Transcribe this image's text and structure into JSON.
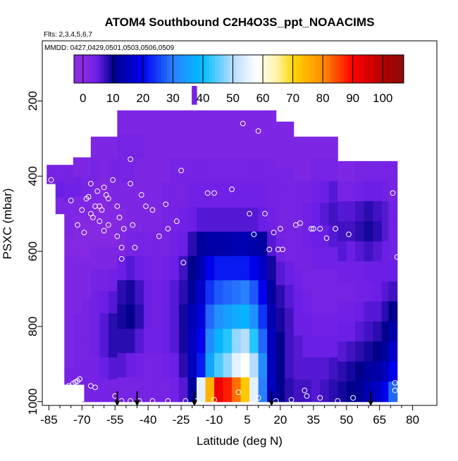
{
  "chart_data": {
    "type": "heatmap",
    "title": "ATOM4 Southbound C2H4O3S_ppt_NOAACIMS",
    "flights_label": "Flts: 2,3,4,5,6,7",
    "dates_label": "MMDD: 0427,0429,0501,0503,0506,0509",
    "xlabel": "Latitude (deg N)",
    "ylabel": "PSXC (mbar)",
    "x_ticks": [
      -85,
      -70,
      -55,
      -40,
      -25,
      -10,
      5,
      20,
      35,
      50,
      65,
      80
    ],
    "x_tick_labels": [
      "-85",
      "-70",
      "-55",
      "-40",
      "-25",
      "-10",
      "5",
      "20",
      "35",
      "50",
      "65",
      "80"
    ],
    "x_range": [
      -88,
      91
    ],
    "y_ticks": [
      200,
      400,
      600,
      800,
      1000
    ],
    "y_tick_labels": [
      "200",
      "400",
      "600",
      "800",
      "1000"
    ],
    "y_range": [
      1010,
      40
    ],
    "colorbar": {
      "ticks": [
        0,
        10,
        20,
        30,
        40,
        50,
        60,
        70,
        80,
        90,
        100
      ],
      "tick_labels": [
        "0",
        "10",
        "20",
        "30",
        "40",
        "50",
        "60",
        "70",
        "80",
        "90",
        "100"
      ],
      "range": [
        -3,
        107
      ]
    },
    "columns": [
      {
        "lat": -84,
        "top": 370,
        "bottom": 420,
        "values": [
          3
        ]
      },
      {
        "lat": -80,
        "top": 370,
        "bottom": 500,
        "values": [
          3,
          5,
          2
        ]
      },
      {
        "lat": -76,
        "top": 370,
        "bottom": 960,
        "values": [
          3,
          4,
          2,
          2,
          1,
          2,
          2,
          2,
          2,
          2,
          2,
          3
        ]
      },
      {
        "lat": -72,
        "top": 350,
        "bottom": 975,
        "values": [
          2,
          4,
          2,
          1,
          1,
          2,
          2,
          2,
          3,
          3,
          3,
          3
        ]
      },
      {
        "lat": -68,
        "top": 350,
        "bottom": 1000,
        "values": [
          2,
          3,
          2,
          1,
          1,
          2,
          2,
          3,
          3,
          3,
          3,
          3
        ]
      },
      {
        "lat": -64,
        "top": 295,
        "bottom": 1000,
        "values": [
          2,
          3,
          2,
          1,
          1,
          2,
          3,
          4,
          4,
          4,
          3,
          3
        ]
      },
      {
        "lat": -60,
        "top": 295,
        "bottom": 1000,
        "values": [
          2,
          2,
          1,
          1,
          1,
          2,
          3,
          5,
          6,
          6,
          5,
          3
        ]
      },
      {
        "lat": -56,
        "top": 295,
        "bottom": 1000,
        "values": [
          2,
          3,
          2,
          1,
          1,
          2,
          4,
          6,
          8,
          8,
          6,
          3
        ]
      },
      {
        "lat": -52,
        "top": 225,
        "bottom": 1000,
        "values": [
          2,
          3,
          3,
          2,
          1,
          2,
          5,
          8,
          9,
          8,
          6,
          3
        ]
      },
      {
        "lat": -48,
        "top": 225,
        "bottom": 1000,
        "values": [
          2,
          3,
          3,
          2,
          2,
          3,
          6,
          9,
          10,
          8,
          5,
          3
        ]
      },
      {
        "lat": -44,
        "top": 225,
        "bottom": 1000,
        "values": [
          2,
          3,
          2,
          2,
          2,
          3,
          5,
          7,
          8,
          6,
          4,
          3
        ]
      },
      {
        "lat": -40,
        "top": 225,
        "bottom": 1000,
        "values": [
          2,
          2,
          2,
          2,
          2,
          3,
          4,
          5,
          5,
          4,
          3,
          3
        ]
      },
      {
        "lat": -36,
        "top": 225,
        "bottom": 1000,
        "values": [
          2,
          2,
          2,
          2,
          2,
          3,
          3,
          4,
          4,
          4,
          3,
          3
        ]
      },
      {
        "lat": -32,
        "top": 225,
        "bottom": 1000,
        "values": [
          2,
          2,
          2,
          3,
          3,
          3,
          4,
          5,
          5,
          5,
          4,
          3
        ]
      },
      {
        "lat": -28,
        "top": 225,
        "bottom": 1000,
        "values": [
          2,
          2,
          3,
          3,
          3,
          4,
          5,
          6,
          6,
          6,
          5,
          4
        ]
      },
      {
        "lat": -24,
        "top": 225,
        "bottom": 1000,
        "values": [
          2,
          2,
          3,
          3,
          4,
          5,
          7,
          8,
          9,
          9,
          8,
          6
        ]
      },
      {
        "lat": -20,
        "top": 225,
        "bottom": 1000,
        "values": [
          2,
          2,
          3,
          4,
          5,
          8,
          10,
          12,
          14,
          15,
          15,
          12
        ]
      },
      {
        "lat": -16,
        "top": 225,
        "bottom": 1000,
        "values": [
          2,
          2,
          3,
          4,
          6,
          12,
          14,
          16,
          18,
          20,
          22,
          55
        ]
      },
      {
        "lat": -12,
        "top": 225,
        "bottom": 1000,
        "values": [
          2,
          2,
          3,
          4,
          6,
          13,
          20,
          24,
          28,
          32,
          36,
          75
        ]
      },
      {
        "lat": -8,
        "top": 225,
        "bottom": 1000,
        "values": [
          2,
          2,
          3,
          4,
          6,
          13,
          22,
          27,
          33,
          38,
          44,
          92
        ]
      },
      {
        "lat": -4,
        "top": 225,
        "bottom": 1000,
        "values": [
          2,
          2,
          3,
          4,
          6,
          13,
          22,
          28,
          35,
          42,
          48,
          88
        ]
      },
      {
        "lat": 0,
        "top": 225,
        "bottom": 1000,
        "values": [
          2,
          2,
          3,
          4,
          6,
          14,
          22,
          29,
          37,
          48,
          55,
          82
        ]
      },
      {
        "lat": 4,
        "top": 225,
        "bottom": 1000,
        "values": [
          2,
          2,
          3,
          4,
          6,
          14,
          22,
          30,
          38,
          50,
          58,
          72
        ]
      },
      {
        "lat": 8,
        "top": 225,
        "bottom": 1000,
        "values": [
          2,
          2,
          3,
          4,
          6,
          13,
          20,
          27,
          33,
          42,
          50,
          55
        ]
      },
      {
        "lat": 12,
        "top": 225,
        "bottom": 1000,
        "values": [
          2,
          2,
          3,
          4,
          5,
          12,
          16,
          20,
          24,
          28,
          32,
          30
        ]
      },
      {
        "lat": 16,
        "top": 225,
        "bottom": 1000,
        "values": [
          2,
          2,
          3,
          3,
          4,
          6,
          9,
          12,
          14,
          15,
          15,
          15
        ]
      },
      {
        "lat": 20,
        "top": 255,
        "bottom": 1000,
        "values": [
          2,
          2,
          3,
          3,
          3,
          4,
          6,
          8,
          9,
          10,
          10,
          10
        ]
      },
      {
        "lat": 24,
        "top": 255,
        "bottom": 1000,
        "values": [
          2,
          2,
          3,
          3,
          3,
          3,
          5,
          6,
          7,
          7,
          7,
          8
        ]
      },
      {
        "lat": 28,
        "top": 295,
        "bottom": 1000,
        "values": [
          2,
          2,
          3,
          3,
          3,
          3,
          4,
          5,
          5,
          6,
          6,
          7
        ]
      },
      {
        "lat": 32,
        "top": 295,
        "bottom": 1000,
        "values": [
          2,
          2,
          3,
          4,
          4,
          3,
          3,
          4,
          5,
          5,
          6,
          7
        ]
      },
      {
        "lat": 36,
        "top": 295,
        "bottom": 1000,
        "values": [
          2,
          3,
          4,
          5,
          5,
          4,
          3,
          3,
          4,
          5,
          6,
          6
        ]
      },
      {
        "lat": 40,
        "top": 295,
        "bottom": 1000,
        "values": [
          2,
          3,
          5,
          6,
          5,
          4,
          3,
          3,
          4,
          5,
          6,
          7
        ]
      },
      {
        "lat": 44,
        "top": 295,
        "bottom": 1000,
        "values": [
          2,
          3,
          6,
          7,
          6,
          4,
          3,
          3,
          4,
          5,
          7,
          8
        ]
      },
      {
        "lat": 48,
        "top": 360,
        "bottom": 1000,
        "values": [
          2,
          3,
          6,
          7,
          6,
          4,
          3,
          4,
          5,
          6,
          8,
          9
        ]
      },
      {
        "lat": 52,
        "top": 360,
        "bottom": 1000,
        "values": [
          2,
          3,
          6,
          7,
          5,
          4,
          3,
          4,
          5,
          7,
          9,
          10
        ]
      },
      {
        "lat": 56,
        "top": 360,
        "bottom": 1000,
        "values": [
          3,
          4,
          7,
          8,
          6,
          4,
          4,
          5,
          6,
          8,
          10,
          11
        ]
      },
      {
        "lat": 60,
        "top": 360,
        "bottom": 1000,
        "values": [
          3,
          5,
          8,
          9,
          7,
          5,
          4,
          6,
          7,
          9,
          12,
          14
        ]
      },
      {
        "lat": 64,
        "top": 360,
        "bottom": 1000,
        "values": [
          3,
          5,
          7,
          8,
          6,
          5,
          5,
          6,
          8,
          10,
          13,
          16
        ]
      },
      {
        "lat": 68,
        "top": 360,
        "bottom": 1000,
        "values": [
          3,
          4,
          6,
          6,
          5,
          5,
          6,
          8,
          10,
          12,
          15,
          20
        ]
      },
      {
        "lat": 71,
        "top": 360,
        "bottom": 1000,
        "values": [
          3,
          3,
          4,
          4,
          4,
          5,
          7,
          10,
          13,
          16,
          20,
          28
        ]
      }
    ],
    "spike": {
      "lat": -19,
      "top": 160,
      "bottom": 210,
      "value": 3
    },
    "white_patch": {
      "lat_range": [
        -80,
        -69
      ],
      "top": 955,
      "bottom": 1000
    },
    "arrows_lat": [
      -54,
      -45,
      -19,
      16,
      61
    ],
    "sample_points": [
      [
        -84,
        410
      ],
      [
        -75,
        465
      ],
      [
        -72,
        530
      ],
      [
        -70,
        490
      ],
      [
        -69,
        550
      ],
      [
        -68,
        460
      ],
      [
        -67,
        455
      ],
      [
        -66,
        420
      ],
      [
        -66,
        500
      ],
      [
        -65,
        510
      ],
      [
        -64,
        480
      ],
      [
        -63,
        440
      ],
      [
        -62,
        520
      ],
      [
        -62,
        480
      ],
      [
        -61,
        490
      ],
      [
        -60,
        430
      ],
      [
        -60,
        545
      ],
      [
        -59,
        450
      ],
      [
        -58,
        460
      ],
      [
        -58,
        530
      ],
      [
        -56,
        410
      ],
      [
        -54,
        480
      ],
      [
        -54,
        560
      ],
      [
        -53,
        510
      ],
      [
        -52,
        620
      ],
      [
        -52,
        590
      ],
      [
        -51,
        540
      ],
      [
        -48,
        420
      ],
      [
        -48,
        355
      ],
      [
        -47,
        530
      ],
      [
        -46,
        590
      ],
      [
        -43,
        450
      ],
      [
        -41,
        480
      ],
      [
        -38,
        490
      ],
      [
        -35,
        560
      ],
      [
        -32,
        475
      ],
      [
        -31,
        540
      ],
      [
        -27,
        520
      ],
      [
        -25,
        385
      ],
      [
        -24,
        630
      ],
      [
        -13,
        445
      ],
      [
        -10,
        445
      ],
      [
        -2,
        435
      ],
      [
        3,
        260
      ],
      [
        6,
        500
      ],
      [
        8,
        555
      ],
      [
        10,
        280
      ],
      [
        13,
        500
      ],
      [
        15,
        595
      ],
      [
        17,
        550
      ],
      [
        19,
        595
      ],
      [
        20,
        540
      ],
      [
        21,
        595
      ],
      [
        27,
        530
      ],
      [
        29,
        525
      ],
      [
        34,
        540
      ],
      [
        35,
        540
      ],
      [
        38,
        540
      ],
      [
        41,
        565
      ],
      [
        45,
        540
      ],
      [
        51,
        555
      ],
      [
        71,
        445
      ],
      [
        73,
        615
      ],
      [
        -76,
        958
      ],
      [
        -74,
        952
      ],
      [
        -73,
        948
      ],
      [
        -72,
        945
      ],
      [
        -71,
        940
      ],
      [
        -66,
        958
      ],
      [
        -64,
        962
      ],
      [
        -55,
        985
      ],
      [
        -52,
        998
      ],
      [
        -48,
        998
      ],
      [
        -44,
        998
      ],
      [
        -38,
        998
      ],
      [
        -31,
        998
      ],
      [
        -23,
        998
      ],
      [
        -18,
        998
      ],
      [
        -10,
        995
      ],
      [
        1,
        975
      ],
      [
        10,
        990
      ],
      [
        18,
        998
      ],
      [
        25,
        995
      ],
      [
        31,
        970
      ],
      [
        32,
        985
      ],
      [
        38,
        990
      ],
      [
        46,
        998
      ],
      [
        53,
        990
      ],
      [
        72,
        950
      ],
      [
        72,
        970
      ]
    ]
  }
}
